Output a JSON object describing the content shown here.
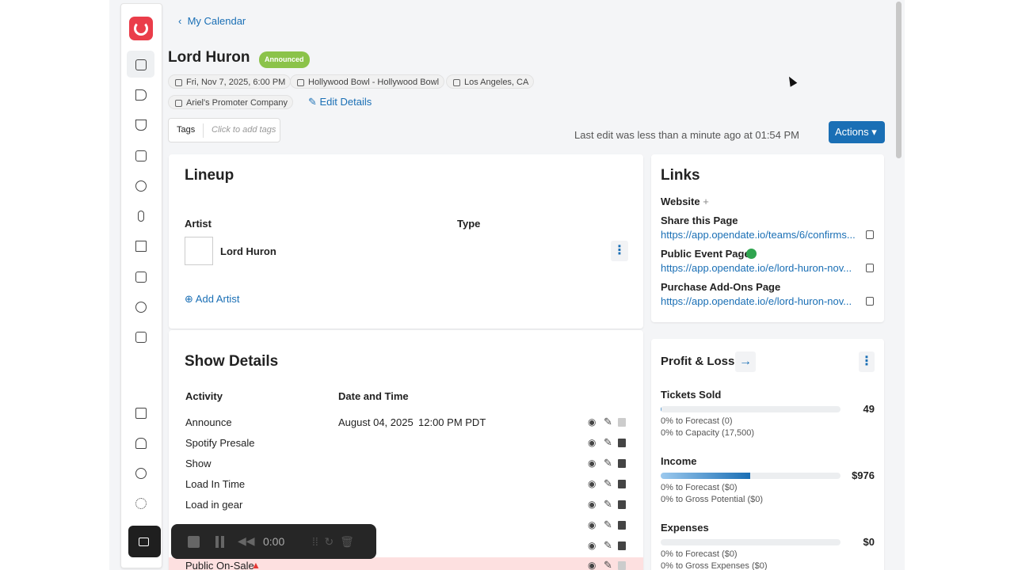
{
  "nav": {
    "back": "My Calendar"
  },
  "event": {
    "title": "Lord Huron",
    "status": "Announced",
    "date": "Fri, Nov 7, 2025, 6:00 PM",
    "venue": "Hollywood Bowl - Hollywood Bowl",
    "location": "Los Angeles, CA",
    "promoter": "Ariel's Promoter Company",
    "edit": "Edit Details"
  },
  "tags": {
    "label": "Tags",
    "placeholder": "Click to add tags"
  },
  "last_edit": "Last edit was less than a minute ago at 01:54 PM",
  "actions": "Actions",
  "lineup": {
    "title": "Lineup",
    "columns": [
      "Artist",
      "Type"
    ],
    "artists": [
      "Lord Huron"
    ],
    "add": "Add Artist"
  },
  "show_details": {
    "title": "Show Details",
    "columns": [
      "Activity",
      "Date and Time"
    ],
    "rows": [
      {
        "activity": "Announce",
        "date": "August 04, 2025",
        "time": "12:00 PM PDT"
      },
      {
        "activity": "Spotify Presale"
      },
      {
        "activity": "Show"
      },
      {
        "activity": "Load In Time"
      },
      {
        "activity": "Load in gear"
      },
      {
        "activity": "Public On-Sale"
      }
    ]
  },
  "links": {
    "title": "Links",
    "website": "Website",
    "items": [
      {
        "label": "Share this Page",
        "url": "https://app.opendate.io/teams/6/confirms..."
      },
      {
        "label": "Public Event Page",
        "url": "https://app.opendate.io/e/lord-huron-nov..."
      },
      {
        "label": "Purchase Add-Ons Page",
        "url": "https://app.opendate.io/e/lord-huron-nov..."
      }
    ]
  },
  "pnl": {
    "title": "Profit & Loss",
    "sections": [
      {
        "label": "Tickets Sold",
        "value": "49",
        "lines": [
          "0% to Forecast (0)",
          "0% to Capacity (17,500)"
        ]
      },
      {
        "label": "Income",
        "value": "$976",
        "lines": [
          "0% to Forecast ($0)",
          "0% to Gross Potential ($0)"
        ]
      },
      {
        "label": "Expenses",
        "value": "$0",
        "lines": [
          "0% to Forecast ($0)",
          "0% to Gross Expenses ($0)"
        ]
      }
    ]
  },
  "recorder": {
    "time": "0:00"
  }
}
